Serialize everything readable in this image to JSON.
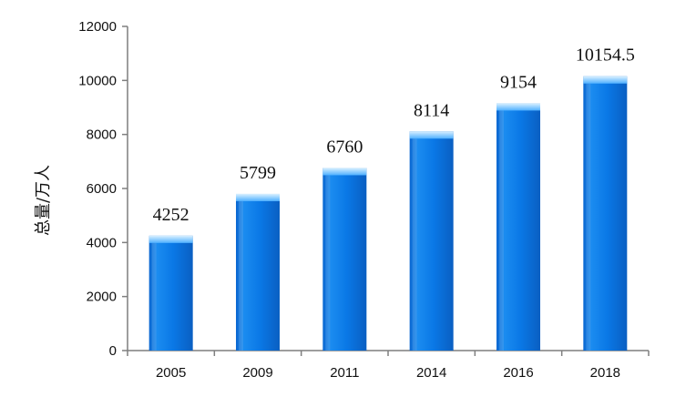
{
  "chart_data": {
    "type": "bar",
    "categories": [
      "2005",
      "2009",
      "2011",
      "2014",
      "2016",
      "2018"
    ],
    "values": [
      4252,
      5799,
      6760,
      8114,
      9154,
      10154.5
    ],
    "data_labels": [
      "4252",
      "5799",
      "6760",
      "8114",
      "9154",
      "10154.5"
    ],
    "ylabel": "总量/万人",
    "xlabel": "",
    "ylim": [
      0,
      12000
    ],
    "yticks": [
      0,
      2000,
      4000,
      6000,
      8000,
      10000,
      12000
    ],
    "grid": false,
    "legend": "none",
    "colors": {
      "bar_top": "#9fd3ff",
      "bar_light": "#2f9cf5",
      "bar_mid": "#0a78e6",
      "bar_dark": "#0a5fc2",
      "axis": "#7f7f7f",
      "text": "#111111"
    }
  }
}
